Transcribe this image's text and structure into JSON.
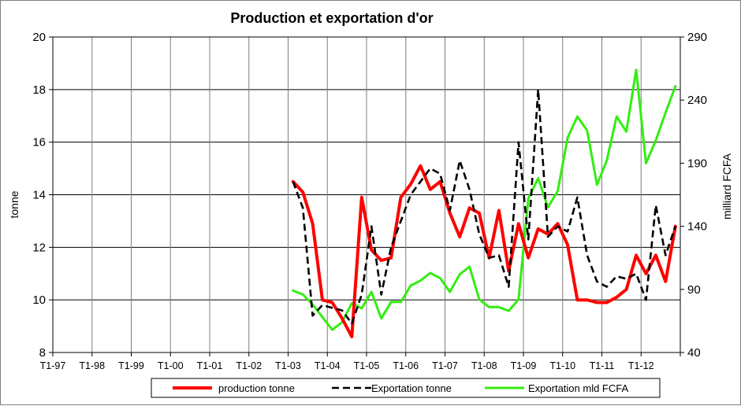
{
  "chart_data": {
    "type": "line",
    "title": "Production et exportation d'or",
    "ylabel": "tonne",
    "y2label": "milliard FCFA",
    "ylim": [
      8,
      20
    ],
    "yticks": [
      "8",
      "10",
      "12",
      "14",
      "16",
      "18",
      "20"
    ],
    "y2lim": [
      40,
      290
    ],
    "y2ticks": [
      "40",
      "90",
      "140",
      "190",
      "240",
      "290"
    ],
    "grid": true,
    "legend_position": "bottom",
    "x_categories": [
      "T1-97",
      "T1-98",
      "T1-99",
      "T1-00",
      "T1-01",
      "T1-02",
      "T1-03",
      "T1-04",
      "T1-05",
      "T1-06",
      "T1-07",
      "T1-08",
      "T1-09",
      "T1-10",
      "T1-11",
      "T1-12"
    ],
    "x_start": "T1-97",
    "points_per_category": 4,
    "series": [
      {
        "name": "production tonne",
        "axis": "left",
        "color": "#ff0000",
        "dash": "solid",
        "start_index": 24,
        "values": [
          14.5,
          14.1,
          12.9,
          10.0,
          9.9,
          9.3,
          8.6,
          13.9,
          11.9,
          11.5,
          11.6,
          13.9,
          14.4,
          15.1,
          14.2,
          14.5,
          13.3,
          12.4,
          13.5,
          13.3,
          11.6,
          13.4,
          11.1,
          12.9,
          11.6,
          12.7,
          12.5,
          12.9,
          12.1,
          10.0,
          10.0,
          9.9,
          9.9,
          10.1,
          10.4,
          11.7,
          11.0,
          11.7,
          10.7,
          12.8
        ]
      },
      {
        "name": "Exportation tonne",
        "axis": "left",
        "color": "#000000",
        "dash": "dashed",
        "start_index": 24,
        "values": [
          14.5,
          13.5,
          9.4,
          9.8,
          9.7,
          9.6,
          9.1,
          10.2,
          12.8,
          10.2,
          12.0,
          13.0,
          14.0,
          14.5,
          15.0,
          14.8,
          13.4,
          15.3,
          14.2,
          12.5,
          11.6,
          11.7,
          10.5,
          16.0,
          12.3,
          18.0,
          12.4,
          12.8,
          12.6,
          13.9,
          11.7,
          10.7,
          10.5,
          10.9,
          10.8,
          11.0,
          10.0,
          13.6,
          11.7,
          12.8
        ]
      },
      {
        "name": "Exportation mld FCFA",
        "axis": "right",
        "color": "#33ee11",
        "dash": "solid",
        "start_index": 24,
        "values": [
          89,
          86,
          78,
          68,
          58,
          64,
          79,
          75,
          88,
          67,
          80,
          80,
          93,
          97,
          103,
          99,
          88,
          102,
          108,
          82,
          76,
          76,
          73,
          82,
          162,
          178,
          155,
          168,
          210,
          227,
          216,
          173,
          192,
          227,
          215,
          264,
          190,
          208,
          230,
          251
        ]
      }
    ]
  }
}
